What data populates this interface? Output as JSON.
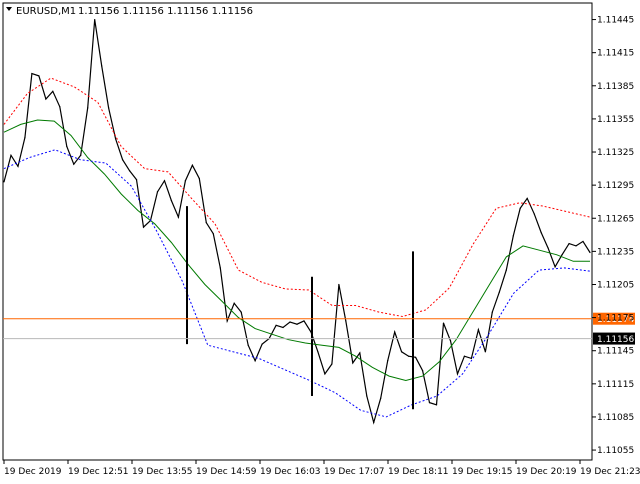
{
  "header": {
    "symbol_timeframe": "EURUSD,M1",
    "ohlc": "1.11156 1.11156 1.11156 1.11156"
  },
  "colors": {
    "background": "#ffffff",
    "grid_frame": "#000000",
    "candles": "#000000",
    "ma_line": "#007a00",
    "upper_band": "#ff0000",
    "lower_band": "#0000ff",
    "alert_level": "#ff6600",
    "bid_level": "#b8b8b8"
  },
  "chart_data": {
    "type": "line",
    "title": "",
    "series": [
      {
        "values": [
          1.11298,
          1.11322,
          1.11312,
          1.11338,
          1.11396,
          1.11394,
          1.11373,
          1.1138,
          1.11366,
          1.1133,
          1.11314,
          1.11322,
          1.11365,
          1.11445,
          1.11403,
          1.11365,
          1.11337,
          1.11318,
          1.11308,
          1.113,
          1.11257,
          1.11263,
          1.11289,
          1.11299,
          1.11281,
          1.11266,
          1.11299,
          1.11313,
          1.11301,
          1.11261,
          1.11251,
          1.1122,
          1.11172,
          1.11188,
          1.1118,
          1.1115,
          1.11136,
          1.11151,
          1.11156,
          1.11168,
          1.11166,
          1.11171,
          1.11169,
          1.11172,
          1.11162,
          1.11144,
          1.11124,
          1.11133,
          1.11205,
          1.11172,
          1.11134,
          1.11143,
          1.11104,
          1.1108,
          1.11102,
          1.11136,
          1.11162,
          1.11144,
          1.1114,
          1.11139,
          1.11127,
          1.11098,
          1.11096,
          1.1117,
          1.11154,
          1.11124,
          1.1114,
          1.11138,
          1.11164,
          1.11144,
          1.1118,
          1.11198,
          1.11218,
          1.11249,
          1.11274,
          1.11283,
          1.11269,
          1.11252,
          1.11238,
          1.11221,
          1.11232,
          1.11242,
          1.1124,
          1.11244,
          1.11234
        ]
      },
      {
        "values": [
          1.11343,
          1.1135,
          1.11354,
          1.11353,
          1.1134,
          1.1132,
          1.11305,
          1.11287,
          1.11272,
          1.1126,
          1.11243,
          1.11223,
          1.11205,
          1.1119,
          1.11175,
          1.11165,
          1.1116,
          1.11155,
          1.11152,
          1.1115,
          1.11148,
          1.1114,
          1.1113,
          1.11122,
          1.11118,
          1.11122,
          1.11135,
          1.11155,
          1.1118,
          1.11205,
          1.1123,
          1.1124,
          1.11236,
          1.11232,
          1.11226,
          1.11226
        ]
      },
      {
        "values": [
          1.1135,
          1.11378,
          1.11392,
          1.11384,
          1.1137,
          1.1133,
          1.1131,
          1.11307,
          1.11283,
          1.1126,
          1.11218,
          1.11207,
          1.11201,
          1.112,
          1.11186,
          1.11186,
          1.1118,
          1.11176,
          1.11182,
          1.11202,
          1.11241,
          1.11274,
          1.11279,
          1.11276,
          1.11271,
          1.11266
        ]
      },
      {
        "values": [
          1.1131,
          1.1132,
          1.11327,
          1.11318,
          1.11315,
          1.11294,
          1.11253,
          1.11208,
          1.1115,
          1.11144,
          1.11138,
          1.11128,
          1.11118,
          1.11107,
          1.11091,
          1.11085,
          1.11096,
          1.11104,
          1.11124,
          1.11159,
          1.11197,
          1.11218,
          1.1122,
          1.11217
        ]
      }
    ],
    "levels": [
      {
        "price": 1.11174,
        "label": "1.11174"
      },
      {
        "price": 1.11156,
        "label": "1.11156"
      }
    ],
    "spikes": [
      {
        "high": 1.11276,
        "low": 1.11151
      },
      {
        "high": 1.11212,
        "low": 1.11104
      },
      {
        "high": 1.11235,
        "low": 1.11092
      }
    ],
    "y_ticks": [
      "1.11445",
      "1.11415",
      "1.11385",
      "1.11355",
      "1.11325",
      "1.11295",
      "1.11265",
      "1.11235",
      "1.11205",
      "1.11175",
      "1.11145",
      "1.11115",
      "1.11085",
      "1.11055"
    ],
    "ylim": [
      1.11046,
      1.1146
    ],
    "x_ticks": [
      "19 Dec 2019",
      "19 Dec 12:51",
      "19 Dec 13:55",
      "19 Dec 14:59",
      "19 Dec 16:03",
      "19 Dec 17:07",
      "19 Dec 18:11",
      "19 Dec 19:15",
      "19 Dec 20:19",
      "19 Dec 21:23"
    ],
    "grid": false
  }
}
